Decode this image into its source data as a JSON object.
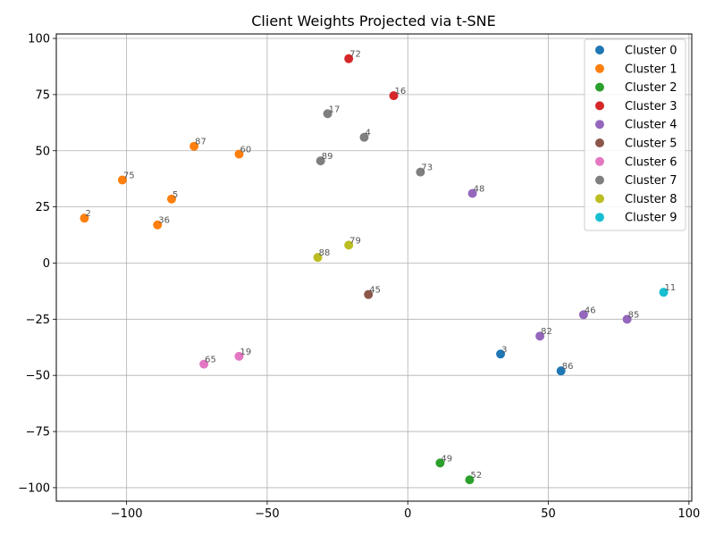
{
  "chart_data": {
    "type": "scatter",
    "title": "Client Weights Projected via t-SNE",
    "xlabel": "",
    "ylabel": "",
    "xlim": [
      -125,
      101
    ],
    "ylim": [
      -106,
      102
    ],
    "x_ticks": [
      -100,
      -50,
      0,
      50,
      100
    ],
    "y_ticks": [
      -100,
      -75,
      -50,
      -25,
      0,
      25,
      50,
      75,
      100
    ],
    "grid": true,
    "legend_position": "top-right",
    "series": [
      {
        "name": "Cluster 0",
        "color": "#1f77b4",
        "points": [
          {
            "label": "3",
            "x": 33,
            "y": -40.5
          },
          {
            "label": "86",
            "x": 54.5,
            "y": -48
          }
        ]
      },
      {
        "name": "Cluster 1",
        "color": "#ff7f0e",
        "points": [
          {
            "label": "87",
            "x": -76,
            "y": 52
          },
          {
            "label": "60",
            "x": -60,
            "y": 48.5
          },
          {
            "label": "75",
            "x": -101.5,
            "y": 37
          },
          {
            "label": "5",
            "x": -84,
            "y": 28.5
          },
          {
            "label": "2",
            "x": -115,
            "y": 20
          },
          {
            "label": "36",
            "x": -89,
            "y": 17
          }
        ]
      },
      {
        "name": "Cluster 2",
        "color": "#2ca02c",
        "points": [
          {
            "label": "49",
            "x": 11.5,
            "y": -89
          },
          {
            "label": "52",
            "x": 22,
            "y": -96.5
          }
        ]
      },
      {
        "name": "Cluster 3",
        "color": "#d62728",
        "points": [
          {
            "label": "72",
            "x": -21,
            "y": 91
          },
          {
            "label": "16",
            "x": -5,
            "y": 74.5
          }
        ]
      },
      {
        "name": "Cluster 4",
        "color": "#9467bd",
        "points": [
          {
            "label": "48",
            "x": 23,
            "y": 31
          },
          {
            "label": "46",
            "x": 62.5,
            "y": -23
          },
          {
            "label": "85",
            "x": 78,
            "y": -25
          },
          {
            "label": "82",
            "x": 47,
            "y": -32.5
          }
        ]
      },
      {
        "name": "Cluster 5",
        "color": "#8c564b",
        "points": [
          {
            "label": "45",
            "x": -14,
            "y": -14
          }
        ]
      },
      {
        "name": "Cluster 6",
        "color": "#e377c2",
        "points": [
          {
            "label": "19",
            "x": -60,
            "y": -41.5
          },
          {
            "label": "65",
            "x": -72.5,
            "y": -45
          }
        ]
      },
      {
        "name": "Cluster 7",
        "color": "#7f7f7f",
        "points": [
          {
            "label": "17",
            "x": -28.5,
            "y": 66.5
          },
          {
            "label": "4",
            "x": -15.5,
            "y": 56
          },
          {
            "label": "89",
            "x": -31,
            "y": 45.5
          },
          {
            "label": "73",
            "x": 4.5,
            "y": 40.5
          }
        ]
      },
      {
        "name": "Cluster 8",
        "color": "#bcbd22",
        "points": [
          {
            "label": "79",
            "x": -21,
            "y": 8
          },
          {
            "label": "88",
            "x": -32,
            "y": 2.5
          }
        ]
      },
      {
        "name": "Cluster 9",
        "color": "#17becf",
        "points": [
          {
            "label": "11",
            "x": 91,
            "y": -13
          }
        ]
      }
    ]
  }
}
